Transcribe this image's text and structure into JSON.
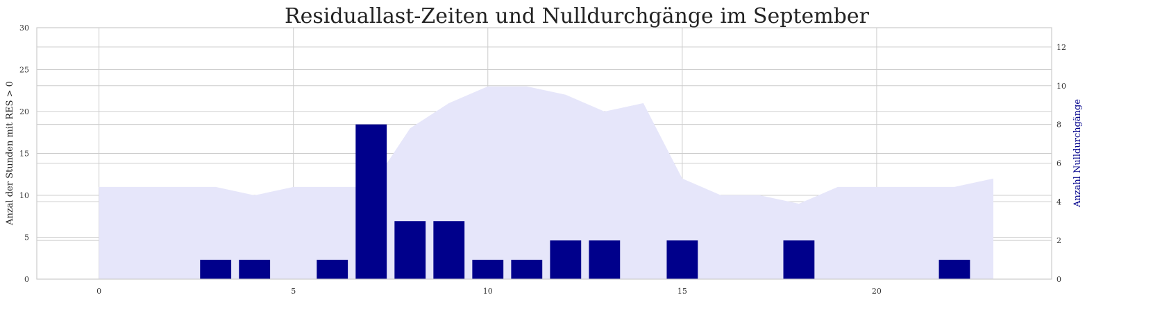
{
  "chart_data": {
    "type": "bar",
    "title": "Residuallast-Zeiten und Nulldurchgänge im September",
    "xlabel": "",
    "ylabel": "Anzal der Stunden mit RES > 0",
    "ylabel_right": "Anzahl Nulldurchgänge",
    "x": [
      0,
      1,
      2,
      3,
      4,
      5,
      6,
      7,
      8,
      9,
      10,
      11,
      12,
      13,
      14,
      15,
      16,
      17,
      18,
      19,
      20,
      21,
      22,
      23
    ],
    "xlim": [
      -1.6,
      24.5
    ],
    "x_ticks": [
      0,
      5,
      10,
      15,
      20
    ],
    "ylim": [
      0,
      30
    ],
    "y_ticks": [
      0,
      5,
      10,
      15,
      20,
      25,
      30
    ],
    "ylim_right": [
      0,
      13
    ],
    "y_ticks_right": [
      0,
      2,
      4,
      6,
      8,
      10,
      12
    ],
    "grid": true,
    "series": [
      {
        "kind": "area",
        "axis": "left",
        "color": "#e6e6fa",
        "values": [
          11,
          11,
          11,
          11,
          10,
          11,
          11,
          11,
          18,
          21,
          23,
          23,
          22,
          20,
          21,
          12,
          10,
          10,
          9,
          11,
          11,
          11,
          11,
          12
        ]
      },
      {
        "kind": "bar",
        "axis": "right",
        "color": "#00008b",
        "x": [
          3,
          4,
          6,
          7,
          8,
          9,
          10,
          11,
          12,
          13,
          15,
          18,
          22
        ],
        "values": [
          1,
          1,
          1,
          8,
          3,
          3,
          1,
          1,
          2,
          2,
          2,
          2,
          1
        ]
      }
    ],
    "right_axis_color": "#00008b"
  }
}
